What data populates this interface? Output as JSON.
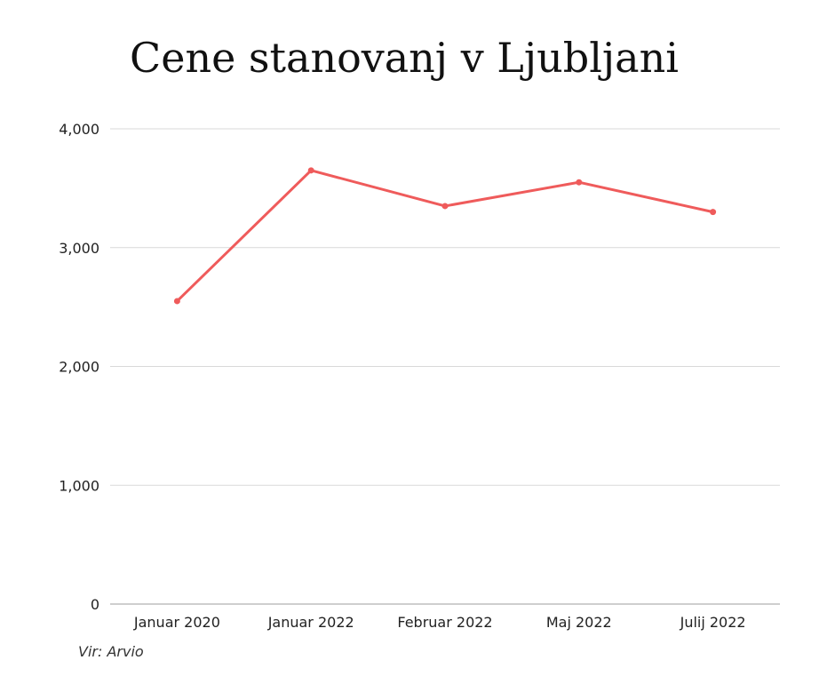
{
  "chart_data": {
    "type": "line",
    "title": "Cene stanovanj v Ljubljani",
    "categories": [
      "Januar 2020",
      "Januar 2022",
      "Februar 2022",
      "Maj 2022",
      "Julij 2022"
    ],
    "series": [
      {
        "values": [
          2550,
          3650,
          3350,
          3550,
          3300
        ]
      }
    ],
    "ylim": [
      0,
      4000
    ],
    "yticks": [
      0,
      1000,
      2000,
      3000,
      4000
    ],
    "ytick_labels": [
      "0",
      "1,000",
      "2,000",
      "3,000",
      "4,000"
    ],
    "xlabel": "",
    "ylabel": "",
    "grid": true,
    "line_color": "#ef5b5b",
    "grid_color": "#d9d9d9"
  },
  "source": "Vir: Arvio"
}
